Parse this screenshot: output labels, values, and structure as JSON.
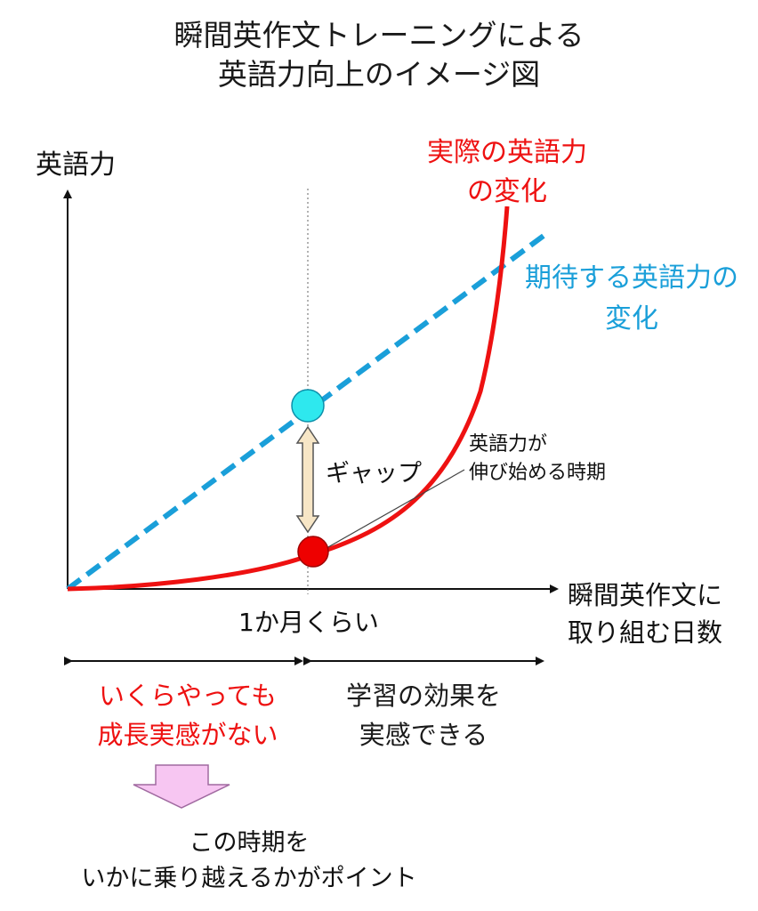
{
  "title": {
    "line1": "瞬間英作文トレーニングによる",
    "line2": "英語力向上のイメージ図"
  },
  "axes": {
    "y_label": "英語力",
    "x_label_line1": "瞬間英作文に",
    "x_label_line2": "取り組む日数"
  },
  "curves": {
    "actual_line1": "実際の英語力",
    "actual_line2": "の変化",
    "expected_line1": "期待する英語力の",
    "expected_line2": "変化",
    "actual_color": "#ee1111",
    "expected_color": "#1a9fd9"
  },
  "annotations": {
    "gap": "ギャップ",
    "start_line1": "英語力が",
    "start_line2": "伸び始める時期",
    "month": "1か月くらい"
  },
  "phases": {
    "left_line1": "いくらやっても",
    "left_line2": "成長実感がない",
    "right_line1": "学習の効果を",
    "right_line2": "実感できる"
  },
  "note": {
    "line1": "この時期を",
    "line2": "いかに乗り越えるかがポイント"
  }
}
